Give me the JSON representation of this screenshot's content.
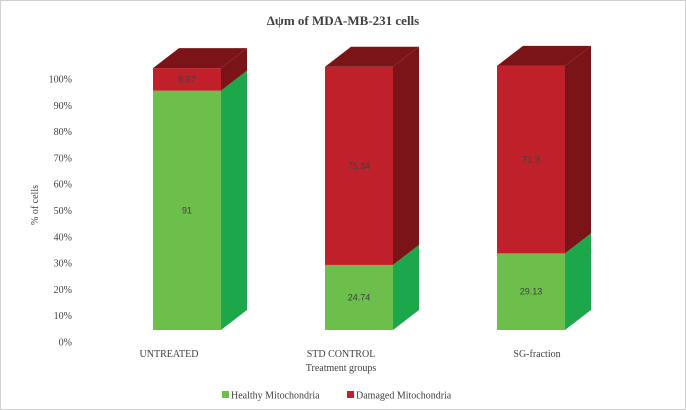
{
  "chart_data": {
    "type": "bar",
    "stacked": true,
    "style": "3d-stacked-column-percent",
    "title": "Δψm of MDA-MB-231 cells",
    "xlabel": "Treatment groups",
    "ylabel": "% of cells",
    "ylim": [
      0,
      100
    ],
    "yticks": [
      "0%",
      "10%",
      "20%",
      "30%",
      "40%",
      "50%",
      "60%",
      "70%",
      "80%",
      "90%",
      "100%"
    ],
    "categories": [
      "UNTREATED",
      "STD CONTROL",
      "SG-fraction"
    ],
    "series": [
      {
        "name": "Healthy Mitochondria",
        "values": [
          91,
          24.74,
          29.13
        ],
        "labels": [
          "91",
          "24.74",
          "29.13"
        ],
        "color": "#6cbf4a",
        "side_color": "#1ca84a"
      },
      {
        "name": "Damaged Mitochondria",
        "values": [
          8.57,
          75.34,
          71.3
        ],
        "labels": [
          "8.57",
          "75.34",
          "71.3"
        ],
        "color": "#c0202a",
        "side_color": "#7a1418"
      }
    ],
    "legend_position": "bottom",
    "grid": false
  }
}
